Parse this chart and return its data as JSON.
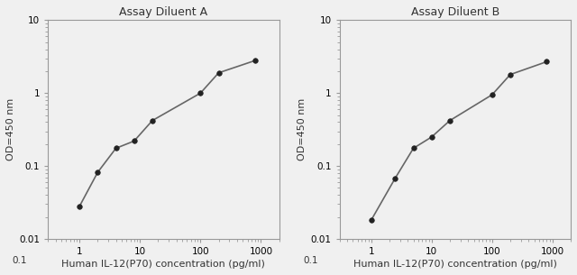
{
  "panel_A": {
    "title": "Assay Diluent A",
    "x": [
      1,
      2,
      4,
      8,
      16,
      100,
      200,
      800
    ],
    "y": [
      0.028,
      0.082,
      0.175,
      0.22,
      0.42,
      1.0,
      1.9,
      2.8
    ],
    "xlabel": "Human IL-12(P70) concentration (pg/ml)",
    "ylabel": "OD=450 nm",
    "xlim": [
      0.3,
      2000
    ],
    "ylim": [
      0.01,
      10
    ]
  },
  "panel_B": {
    "title": "Assay Diluent B",
    "x": [
      1,
      2.5,
      5,
      10,
      20,
      100,
      200,
      800
    ],
    "y": [
      0.018,
      0.068,
      0.175,
      0.25,
      0.42,
      0.95,
      1.8,
      2.7
    ],
    "xlabel": "Human IL-12(P70) concentration (pg/ml)",
    "ylabel": "OD=450 nm",
    "xlim": [
      0.3,
      2000
    ],
    "ylim": [
      0.01,
      10
    ]
  },
  "line_color": "#666666",
  "marker_color": "#222222",
  "bg_color": "#f0f0f0",
  "plot_bg": "#f0f0f0",
  "title_fontsize": 9,
  "label_fontsize": 8,
  "tick_fontsize": 7.5,
  "spine_color": "#999999"
}
